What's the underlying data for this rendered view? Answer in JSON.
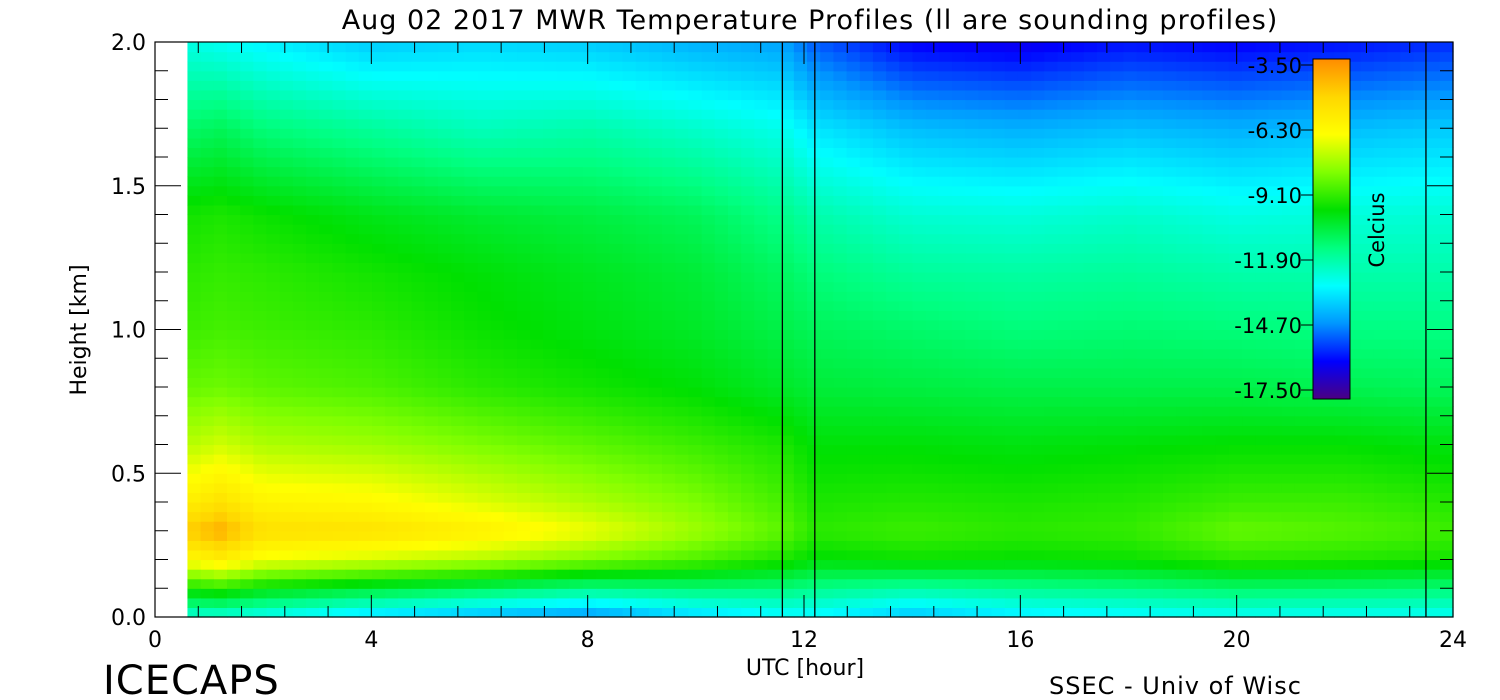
{
  "chart_data": {
    "type": "heatmap",
    "title": "Aug 02 2017 MWR Temperature Profiles (ll are sounding profiles)",
    "xlabel": "UTC [hour]",
    "ylabel": "Height [km]",
    "xlim": [
      0,
      24
    ],
    "ylim": [
      0,
      2
    ],
    "x_ticks": [
      "0",
      "4",
      "8",
      "12",
      "16",
      "20",
      "24"
    ],
    "y_ticks": [
      "0.0",
      "0.5",
      "1.0",
      "1.5",
      "2.0"
    ],
    "data_start_hour": 0.6,
    "data_gap_hours": [
      11.6,
      12.2
    ],
    "sounding_profile_hours": [
      11.6,
      12.2,
      23.5
    ],
    "colorbar": {
      "label": "Celcius",
      "range": [
        -17.5,
        -3.5
      ],
      "ticks": [
        "-3.50",
        "-6.30",
        "-9.10",
        "-11.90",
        "-14.70",
        "-17.50"
      ],
      "colors": [
        "#ff8c00",
        "#ffd700",
        "#ffff00",
        "#80ff00",
        "#00e000",
        "#00ff80",
        "#00ffff",
        "#0096ff",
        "#0000ff",
        "#4b0082"
      ]
    },
    "profiles": [
      {
        "hour": 0.6,
        "t": [
          -12.5,
          -6.5,
          -4.8,
          -6.0,
          -7.5,
          -8.5,
          -9.0,
          -9.2,
          -9.5,
          -11.0,
          -12.5
        ]
      },
      {
        "hour": 1.2,
        "t": [
          -12.5,
          -6.0,
          -4.2,
          -5.5,
          -7.2,
          -8.4,
          -8.9,
          -9.1,
          -9.4,
          -10.8,
          -12.7
        ]
      },
      {
        "hour": 2.0,
        "t": [
          -12.8,
          -6.8,
          -5.4,
          -6.2,
          -7.6,
          -8.6,
          -9.0,
          -9.2,
          -9.6,
          -11.2,
          -13.0
        ]
      },
      {
        "hour": 4.0,
        "t": [
          -13.5,
          -7.2,
          -5.5,
          -6.4,
          -7.8,
          -8.8,
          -9.2,
          -9.5,
          -10.0,
          -11.6,
          -13.6
        ]
      },
      {
        "hour": 6.0,
        "t": [
          -14.0,
          -7.6,
          -6.0,
          -7.0,
          -8.2,
          -9.2,
          -9.6,
          -9.8,
          -10.3,
          -12.0,
          -13.4
        ]
      },
      {
        "hour": 8.0,
        "t": [
          -14.5,
          -8.2,
          -6.8,
          -7.6,
          -8.6,
          -9.5,
          -9.9,
          -10.1,
          -10.5,
          -11.8,
          -13.6
        ]
      },
      {
        "hour": 10.0,
        "t": [
          -13.5,
          -8.8,
          -7.8,
          -8.2,
          -9.0,
          -9.8,
          -10.2,
          -10.4,
          -10.8,
          -12.2,
          -14.0
        ]
      },
      {
        "hour": 11.6,
        "t": [
          -13.0,
          -9.4,
          -8.6,
          -8.9,
          -9.4,
          -10.2,
          -10.6,
          -10.9,
          -11.4,
          -12.6,
          -14.2
        ]
      },
      {
        "hour": 12.2,
        "t": [
          -13.0,
          -9.8,
          -9.2,
          -9.4,
          -9.8,
          -10.4,
          -10.8,
          -11.2,
          -11.8,
          -13.2,
          -15.0
        ]
      },
      {
        "hour": 14.0,
        "t": [
          -13.8,
          -9.6,
          -9.0,
          -9.3,
          -9.8,
          -10.5,
          -11.0,
          -11.6,
          -12.3,
          -13.8,
          -16.0
        ]
      },
      {
        "hour": 16.0,
        "t": [
          -13.2,
          -9.7,
          -9.2,
          -9.4,
          -9.9,
          -10.6,
          -11.2,
          -11.7,
          -12.4,
          -14.0,
          -16.2
        ]
      },
      {
        "hour": 18.0,
        "t": [
          -13.0,
          -9.6,
          -9.1,
          -9.3,
          -9.8,
          -10.6,
          -11.1,
          -11.6,
          -12.2,
          -13.8,
          -15.8
        ]
      },
      {
        "hour": 20.0,
        "t": [
          -12.8,
          -9.2,
          -8.5,
          -9.0,
          -9.7,
          -10.6,
          -11.2,
          -11.8,
          -12.5,
          -14.0,
          -16.0
        ]
      },
      {
        "hour": 22.0,
        "t": [
          -12.8,
          -9.3,
          -8.7,
          -9.0,
          -9.7,
          -10.7,
          -11.3,
          -11.8,
          -12.4,
          -13.8,
          -15.8
        ]
      },
      {
        "hour": 24.0,
        "t": [
          -12.8,
          -9.5,
          -9.0,
          -9.3,
          -9.9,
          -10.8,
          -11.3,
          -11.8,
          -12.3,
          -13.6,
          -15.5
        ]
      }
    ],
    "profile_heights_km": [
      0.0,
      0.2,
      0.3,
      0.4,
      0.6,
      0.8,
      1.0,
      1.2,
      1.4,
      1.7,
      2.0
    ]
  },
  "footer": {
    "brand": "ICECAPS",
    "credit": "SSEC - Univ of Wisc"
  }
}
